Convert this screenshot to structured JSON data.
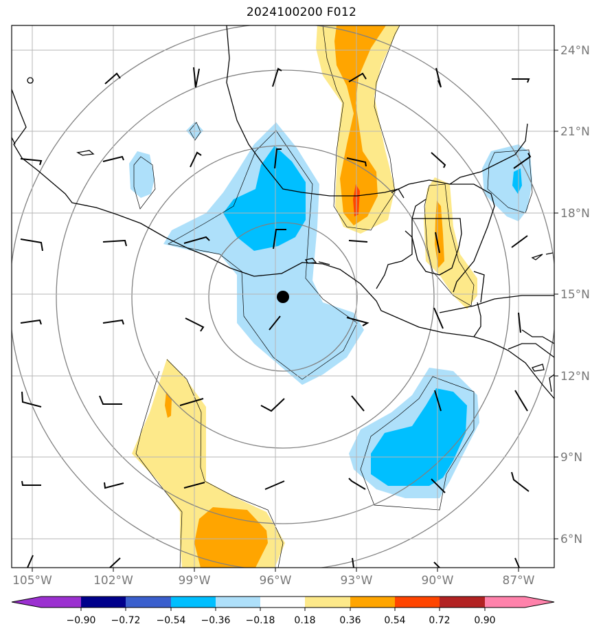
{
  "title": "2024100200 F012",
  "longitude_labels": [
    "105°W",
    "102°W",
    "99°W",
    "96°W",
    "93°W",
    "90°W",
    "87°W"
  ],
  "latitude_labels": [
    "24°N",
    "21°N",
    "18°N",
    "15°N",
    "12°N",
    "9°N",
    "6°N"
  ],
  "colorbar": {
    "ticks": [
      "−0.90",
      "−0.72",
      "−0.54",
      "−0.36",
      "−0.18",
      "0.18",
      "0.36",
      "0.54",
      "0.72",
      "0.90"
    ],
    "colors": [
      "#9b30d0",
      "#00008b",
      "#3a5fcd",
      "#00bfff",
      "#aee0fa",
      "#ffffff",
      "#fde98a",
      "#ffa500",
      "#ff4500",
      "#b22222",
      "#ff82ab"
    ]
  },
  "center_marker": {
    "lon": -95.8,
    "lat": 14.9
  },
  "fields": {
    "negative_fill_color": "#aee0fa",
    "strong_negative_fill_color": "#00bfff",
    "positive_fill_color": "#fde98a",
    "strong_positive_fill_color": "#ffa500",
    "extreme_positive_fill_color": "#ff4500"
  }
}
